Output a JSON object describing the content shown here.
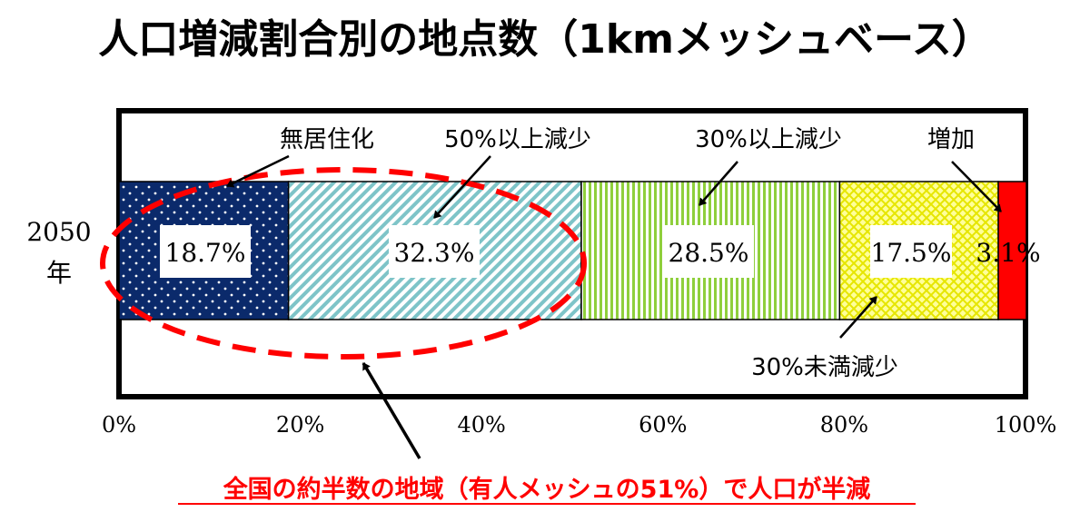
{
  "chart_data": {
    "type": "bar",
    "orientation": "horizontal",
    "stacked": true,
    "title": "人口増減割合別の地点数（1kmメッシュベース）",
    "categories": [
      "2050\n年"
    ],
    "category_label_lines": [
      "2050",
      "年"
    ],
    "series": [
      {
        "name": "無居住化",
        "values": [
          18.7
        ],
        "value_label": "18.7%",
        "color": "#0b2a6b",
        "pattern": "dots"
      },
      {
        "name": "50%以上減少",
        "values": [
          32.3
        ],
        "value_label": "32.3%",
        "color": "#7ec4c8",
        "pattern": "diagonal-stripes"
      },
      {
        "name": "30%以上減少",
        "values": [
          28.5
        ],
        "value_label": "28.5%",
        "color": "#8fcf3c",
        "pattern": "vertical-stripes"
      },
      {
        "name": "30%未満減少",
        "values": [
          17.5
        ],
        "value_label": "17.5%",
        "color": "#f2f25a",
        "pattern": "crosshatch"
      },
      {
        "name": "増加",
        "values": [
          3.1
        ],
        "value_label": "3.1%",
        "color": "#ff0000",
        "pattern": "solid"
      }
    ],
    "xlim": [
      0,
      100
    ],
    "x_ticks": [
      "0%",
      "20%",
      "40%",
      "60%",
      "80%",
      "100%"
    ],
    "x_tick_values": [
      0,
      20,
      40,
      60,
      80,
      100
    ],
    "legend": "callout labels with arrows",
    "annotation": {
      "text": "全国の約半数の地域（有人メッシュの51%）で人口が半減",
      "color": "#ff0000",
      "highlight": "dashed red ellipse around first two segments"
    }
  }
}
